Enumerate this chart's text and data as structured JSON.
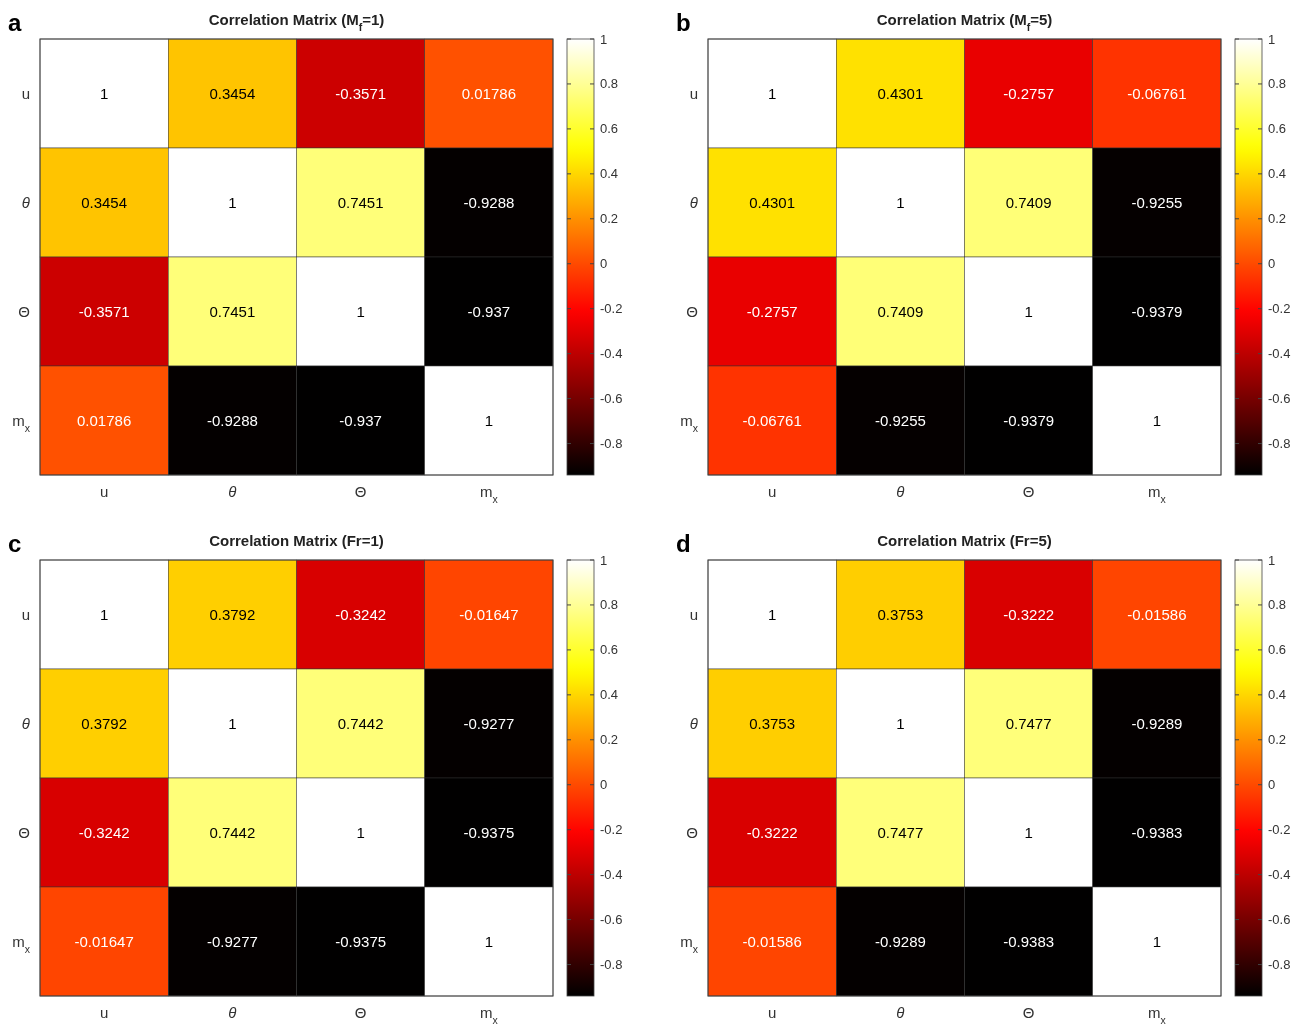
{
  "chart_data": [
    {
      "type": "heatmap",
      "title": "Correlation Matrix (M$_{f}$=1)",
      "annotations": [
        "a"
      ],
      "categories": [
        "u",
        "θ",
        "Θ",
        "m$_{x}$"
      ],
      "y_categories": [
        "u",
        "θ",
        "Θ",
        "m$_{x}$"
      ],
      "cells": [
        [
          1,
          0.3454,
          -0.3571,
          0.01786
        ],
        [
          0.3454,
          1,
          0.7451,
          -0.9288
        ],
        [
          -0.3571,
          0.7451,
          1,
          -0.937
        ],
        [
          0.01786,
          -0.9288,
          -0.937,
          1
        ]
      ],
      "data_labels": true,
      "clim": [
        -0.94,
        1
      ],
      "cticks": [
        -0.8,
        -0.6,
        -0.4,
        -0.2,
        0,
        0.2,
        0.4,
        0.6,
        0.8,
        1
      ]
    },
    {
      "type": "heatmap",
      "title": "Correlation Matrix (M$_{f}$=5)",
      "annotations": [
        "b"
      ],
      "categories": [
        "u",
        "θ",
        "Θ",
        "m$_{x}$"
      ],
      "y_categories": [
        "u",
        "θ",
        "Θ",
        "m$_{x}$"
      ],
      "cells": [
        [
          1,
          0.4301,
          -0.2757,
          -0.06761
        ],
        [
          0.4301,
          1,
          0.7409,
          -0.9255
        ],
        [
          -0.2757,
          0.7409,
          1,
          -0.9379
        ],
        [
          -0.06761,
          -0.9255,
          -0.9379,
          1
        ]
      ],
      "data_labels": true,
      "clim": [
        -0.94,
        1
      ],
      "cticks": [
        -0.8,
        -0.6,
        -0.4,
        -0.2,
        0,
        0.2,
        0.4,
        0.6,
        0.8,
        1
      ]
    },
    {
      "type": "heatmap",
      "title": "Correlation Matrix (Fr=1)",
      "annotations": [
        "c"
      ],
      "categories": [
        "u",
        "θ",
        "Θ",
        "m$_{x}$"
      ],
      "y_categories": [
        "u",
        "θ",
        "Θ",
        "m$_{x}$"
      ],
      "cells": [
        [
          1,
          0.3792,
          -0.3242,
          -0.01647
        ],
        [
          0.3792,
          1,
          0.7442,
          -0.9277
        ],
        [
          -0.3242,
          0.7442,
          1,
          -0.9375
        ],
        [
          -0.01647,
          -0.9277,
          -0.9375,
          1
        ]
      ],
      "data_labels": true,
      "clim": [
        -0.94,
        1
      ],
      "cticks": [
        -0.8,
        -0.6,
        -0.4,
        -0.2,
        0,
        0.2,
        0.4,
        0.6,
        0.8,
        1
      ]
    },
    {
      "type": "heatmap",
      "title": "Correlation Matrix (Fr=5)",
      "annotations": [
        "d"
      ],
      "categories": [
        "u",
        "θ",
        "Θ",
        "m$_{x}$"
      ],
      "y_categories": [
        "u",
        "θ",
        "Θ",
        "m$_{x}$"
      ],
      "cells": [
        [
          1,
          0.3753,
          -0.3222,
          -0.01586
        ],
        [
          0.3753,
          1,
          0.7477,
          -0.9289
        ],
        [
          -0.3222,
          0.7477,
          1,
          -0.9383
        ],
        [
          -0.01586,
          -0.9289,
          -0.9383,
          1
        ]
      ],
      "data_labels": true,
      "clim": [
        -0.94,
        1
      ],
      "cticks": [
        -0.8,
        -0.6,
        -0.4,
        -0.2,
        0,
        0.2,
        0.4,
        0.6,
        0.8,
        1
      ]
    }
  ]
}
